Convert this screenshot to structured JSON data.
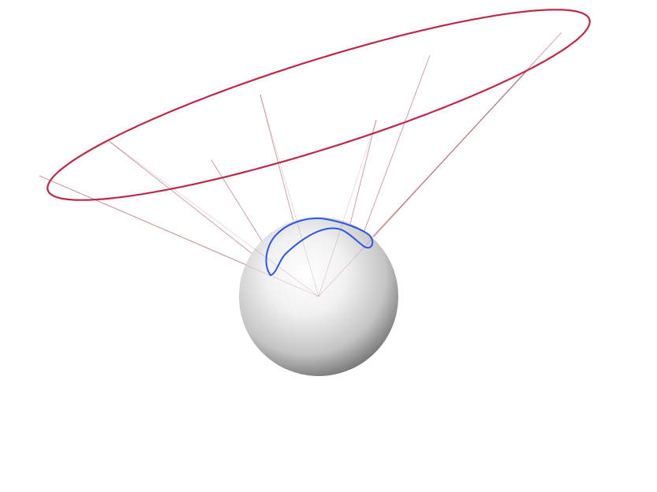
{
  "figure": {
    "colors": {
      "background": "#ffffff",
      "ellipse": "#b8294a",
      "ray": "#a0404a",
      "spherical_curve": "#2f55e8",
      "sphere_light": "#ffffff",
      "sphere_dark": "#5c5c5c"
    }
  }
}
